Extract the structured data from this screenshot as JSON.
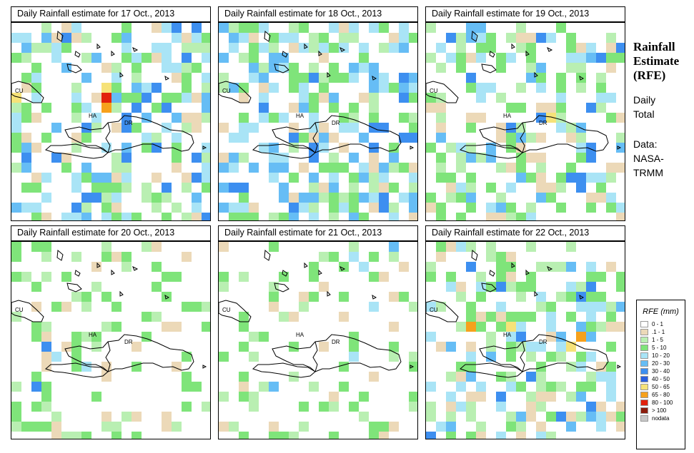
{
  "side_panel": {
    "title_lines": [
      "Rainfall",
      "Estimate",
      "(RFE)"
    ],
    "period_lines": [
      "Daily",
      "Total"
    ],
    "source_lines": [
      "Data:",
      "NASA-",
      "TRMM"
    ]
  },
  "region_labels": {
    "cuba": "CU",
    "haiti": "HA",
    "dr": "DR"
  },
  "legend": {
    "title": "RFE (mm)",
    "items": [
      {
        "label": "0 - 1",
        "color": "#ffffff"
      },
      {
        "label": ".1 - 1",
        "color": "#ecd9b8"
      },
      {
        "label": "1 - 5",
        "color": "#b9efb2"
      },
      {
        "label": "5 - 10",
        "color": "#7fe47a"
      },
      {
        "label": "10 - 20",
        "color": "#a9e4f6"
      },
      {
        "label": "20 - 30",
        "color": "#66bdf5"
      },
      {
        "label": "30 - 40",
        "color": "#3d8ff0"
      },
      {
        "label": "40 - 50",
        "color": "#2a5fe0"
      },
      {
        "label": "50 - 65",
        "color": "#f6e278"
      },
      {
        "label": "65 - 80",
        "color": "#f6a11c"
      },
      {
        "label": "80 - 100",
        "color": "#e2210c"
      },
      {
        "label": "> 100",
        "color": "#8b1c0c"
      },
      {
        "label": "nodata",
        "color": "#c8c8c8"
      }
    ]
  },
  "panels": [
    {
      "title": "Daily Rainfall estimate for  17 Oct., 2013",
      "seed": 17,
      "density": 0.55,
      "wet": 0.45,
      "extreme": [
        [
          9,
          7,
          10
        ],
        [
          9,
          8,
          9
        ],
        [
          9,
          6,
          8
        ],
        [
          0,
          7,
          8
        ]
      ]
    },
    {
      "title": "Daily Rainfall estimate for  18 Oct., 2013",
      "seed": 18,
      "density": 0.6,
      "wet": 0.55,
      "extreme": []
    },
    {
      "title": "Daily Rainfall estimate for  19 Oct., 2013",
      "seed": 19,
      "density": 0.5,
      "wet": 0.3,
      "extreme": [
        [
          12,
          9,
          8
        ]
      ]
    },
    {
      "title": "Daily Rainfall estimate for  20 Oct., 2013",
      "seed": 20,
      "density": 0.28,
      "wet": 0.05,
      "extreme": []
    },
    {
      "title": "Daily Rainfall estimate for  21 Oct., 2013",
      "seed": 21,
      "density": 0.2,
      "wet": 0.03,
      "extreme": []
    },
    {
      "title": "Daily Rainfall estimate for  22 Oct., 2013",
      "seed": 22,
      "density": 0.45,
      "wet": 0.3,
      "extreme": [
        [
          4,
          8,
          9
        ],
        [
          8,
          8,
          8
        ],
        [
          15,
          9,
          9
        ],
        [
          14,
          10,
          8
        ]
      ]
    }
  ]
}
